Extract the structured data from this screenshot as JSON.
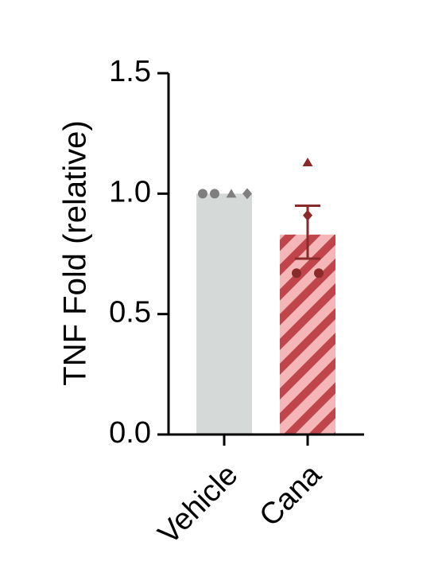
{
  "chart_data": {
    "type": "bar",
    "title": "",
    "xlabel": "",
    "ylabel": "TNF Fold (relative)",
    "ylim": [
      0,
      1.5
    ],
    "yticks": [
      0.0,
      0.5,
      1.0,
      1.5
    ],
    "ytick_labels": [
      "0.0",
      "0.5",
      "1.0",
      "1.5"
    ],
    "categories": [
      "Vehicle",
      "Cana"
    ],
    "values": [
      1.0,
      0.83
    ],
    "error_bars": [
      null,
      {
        "low": 0.73,
        "high": 0.95
      }
    ],
    "points": [
      [
        {
          "y": 1.0,
          "marker": "circle"
        },
        {
          "y": 1.0,
          "marker": "circle"
        },
        {
          "y": 1.0,
          "marker": "triangle"
        },
        {
          "y": 1.0,
          "marker": "diamond"
        }
      ],
      [
        {
          "y": 1.13,
          "marker": "triangle"
        },
        {
          "y": 0.91,
          "marker": "diamond"
        },
        {
          "y": 0.67,
          "marker": "circle"
        },
        {
          "y": 0.67,
          "marker": "circle"
        }
      ]
    ],
    "colors": {
      "vehicle_bar": "#d5d9d8",
      "vehicle_points": "#7f7f7f",
      "cana_bar": "#f4b6b6",
      "cana_hatch": "#c0454b",
      "cana_points": "#8a2a2a",
      "axis": "#000000"
    },
    "grid": false,
    "legend": "none"
  }
}
